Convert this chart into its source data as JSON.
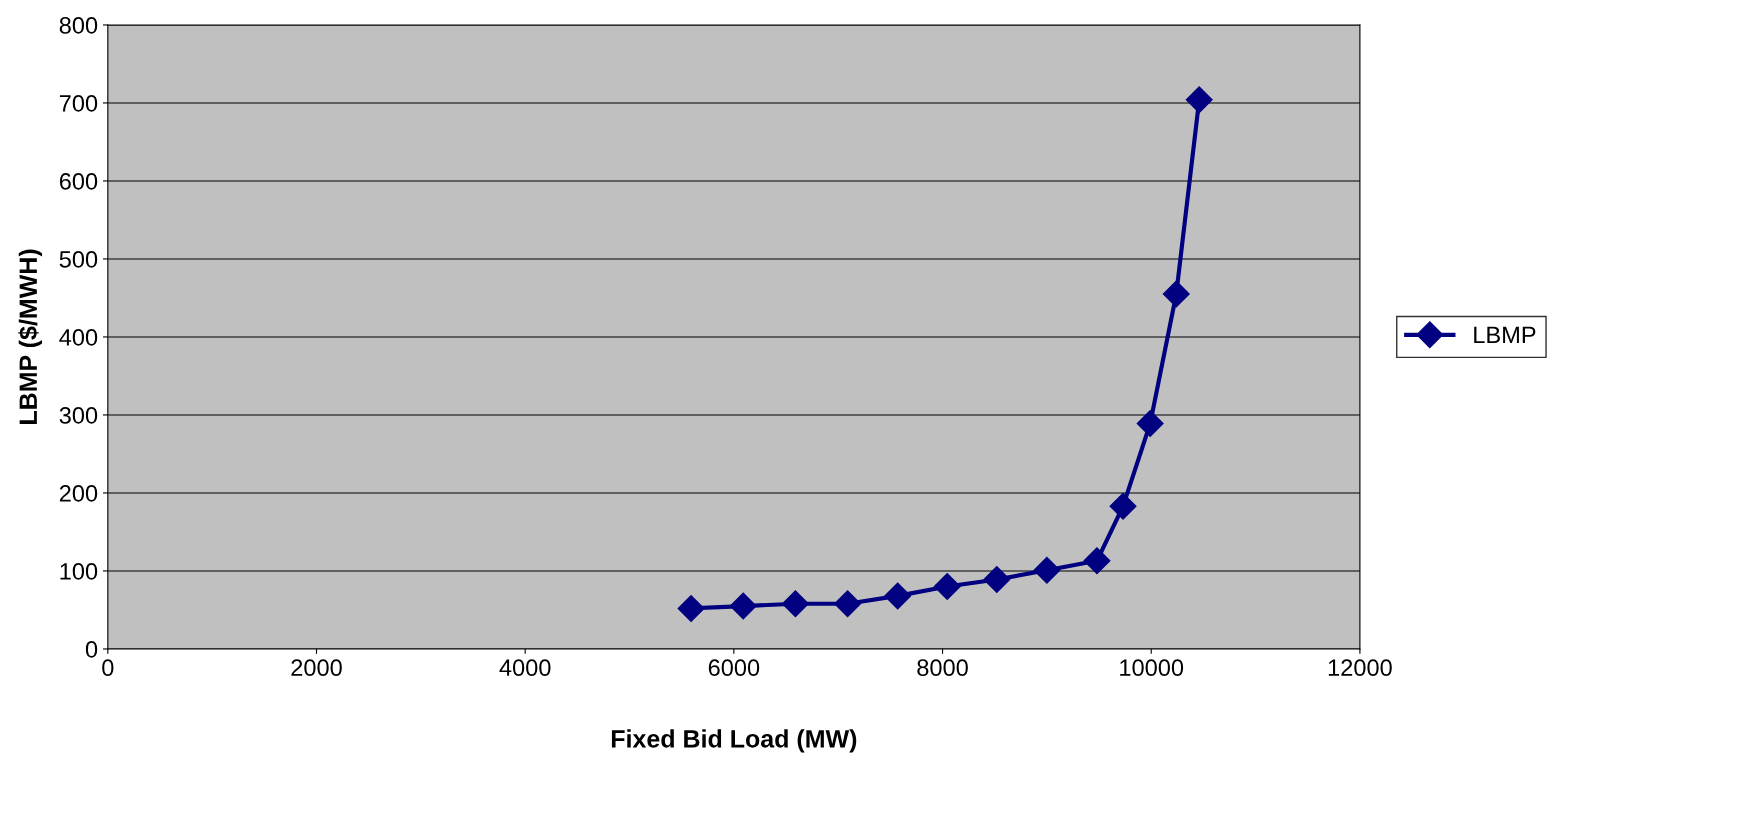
{
  "chart_data": {
    "type": "line",
    "xlabel": "Fixed Bid Load (MW)",
    "ylabel": "LBMP ($/MWH)",
    "x": [
      5590,
      6090,
      6590,
      7090,
      7570,
      8045,
      8520,
      9000,
      9480,
      9730,
      9990,
      10240,
      10460
    ],
    "series": [
      {
        "name": "LBMP",
        "color": "#000080",
        "values": [
          52,
          55,
          58,
          58,
          68,
          80,
          89,
          101,
          113,
          183,
          289,
          455,
          704
        ]
      }
    ],
    "xlim": [
      0,
      12000
    ],
    "xticks": [
      0,
      2000,
      4000,
      6000,
      8000,
      10000,
      12000
    ],
    "ylim": [
      0,
      800
    ],
    "yticks": [
      0,
      100,
      200,
      300,
      400,
      500,
      600,
      700,
      800
    ],
    "grid": "y",
    "legend": "right",
    "marker": "diamond",
    "line_style": "solid"
  }
}
